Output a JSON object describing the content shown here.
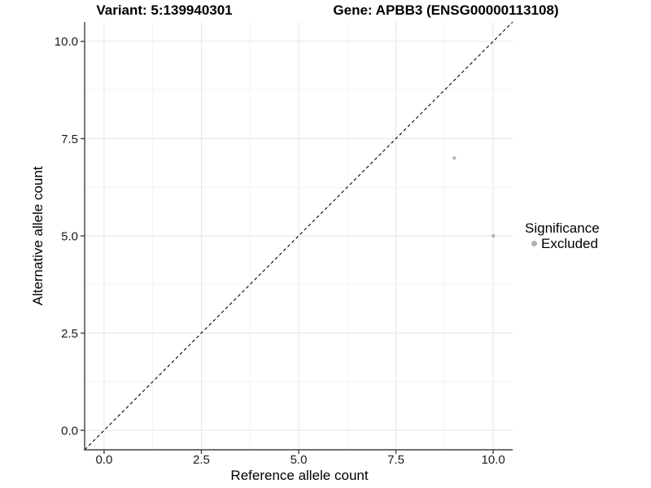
{
  "chart_data": {
    "type": "scatter",
    "titles": [
      "Variant: 5:139940301",
      "Gene: APBB3 (ENSG00000113108)"
    ],
    "xlabel": "Reference allele count",
    "ylabel": "Alternative allele count",
    "xlim": [
      -0.5,
      10.5
    ],
    "ylim": [
      -0.5,
      10.5
    ],
    "x_ticks": {
      "values": [
        0,
        2.5,
        5,
        7.5,
        10
      ],
      "labels": [
        "0.0",
        "2.5",
        "5.0",
        "7.5",
        "10.0"
      ]
    },
    "y_ticks": {
      "values": [
        0,
        2.5,
        5,
        7.5,
        10
      ],
      "labels": [
        "0.0",
        "2.5",
        "5.0",
        "7.5",
        "10.0"
      ]
    },
    "minor_ticks": [
      1.25,
      3.75,
      6.25,
      8.75
    ],
    "grid": true,
    "identity_line": {
      "style": "dashed",
      "color": "#000000",
      "from": [
        -0.5,
        -0.5
      ],
      "to": [
        10.5,
        10.5
      ]
    },
    "series": [
      {
        "name": "Excluded",
        "color": "#b3b3b3",
        "points": [
          {
            "x": 9,
            "y": 7
          },
          {
            "x": 10,
            "y": 5
          }
        ]
      }
    ],
    "legend": {
      "title": "Significance",
      "position": "right",
      "entries": [
        {
          "label": "Excluded",
          "color": "#b3b3b3"
        }
      ]
    }
  },
  "colors": {
    "background": "#ffffff",
    "grid_major": "#e6e6e6",
    "grid_minor": "#f2f2f2",
    "axis": "#404040",
    "tick_text": "#1a1a1a",
    "title_text": "#000000"
  }
}
